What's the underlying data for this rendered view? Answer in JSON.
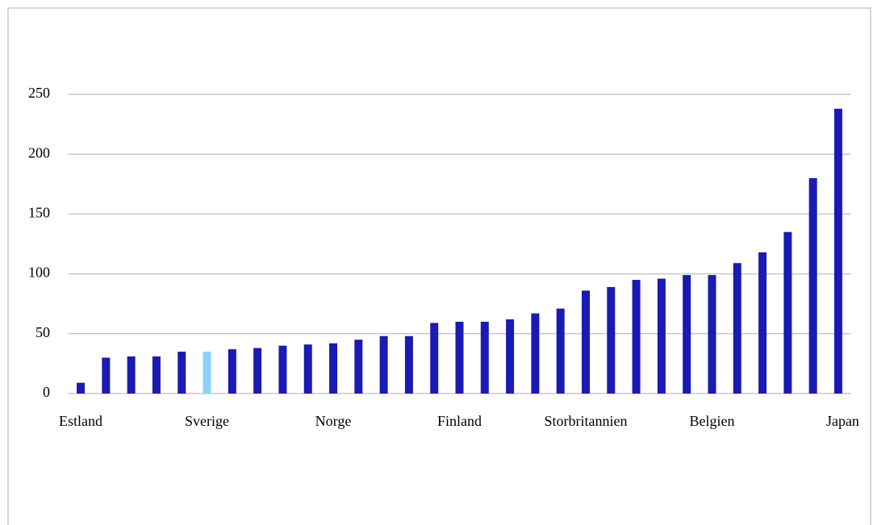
{
  "chart_data": {
    "type": "bar",
    "categories": [
      "Estland",
      null,
      null,
      null,
      null,
      "Sverige",
      null,
      null,
      null,
      null,
      "Norge",
      null,
      null,
      null,
      null,
      "Finland",
      null,
      null,
      null,
      null,
      "Storbritannien",
      null,
      null,
      null,
      null,
      "Belgien",
      null,
      null,
      null,
      null,
      "Japan"
    ],
    "values": [
      9,
      30,
      31,
      31,
      35,
      35,
      37,
      38,
      40,
      41,
      42,
      45,
      48,
      48,
      59,
      60,
      60,
      62,
      67,
      71,
      86,
      89,
      95,
      96,
      99,
      99,
      109,
      118,
      135,
      180,
      238
    ],
    "colors": [
      "#1a1ab4",
      "#1a1ab4",
      "#1a1ab4",
      "#1a1ab4",
      "#1a1ab4",
      "#8ad4f6",
      "#1a1ab4",
      "#1a1ab4",
      "#1a1ab4",
      "#1a1ab4",
      "#1a1ab4",
      "#1a1ab4",
      "#1a1ab4",
      "#1a1ab4",
      "#1a1ab4",
      "#1a1ab4",
      "#1a1ab4",
      "#1a1ab4",
      "#1a1ab4",
      "#1a1ab4",
      "#1a1ab4",
      "#1a1ab4",
      "#1a1ab4",
      "#1a1ab4",
      "#1a1ab4",
      "#1a1ab4",
      "#1a1ab4",
      "#1a1ab4",
      "#1a1ab4",
      "#1a1ab4",
      "#1a1ab4"
    ],
    "ylim": [
      0,
      250
    ],
    "yticks": [
      0,
      50,
      100,
      150,
      200,
      250
    ],
    "grid": true
  }
}
